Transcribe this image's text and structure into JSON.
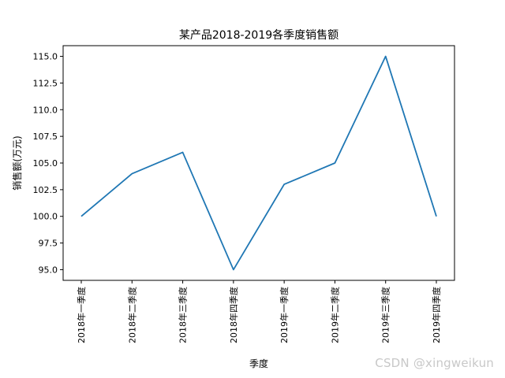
{
  "chart_data": {
    "type": "line",
    "title": "某产品2018-2019各季度销售额",
    "xlabel": "季度",
    "ylabel": "销售额(万元)",
    "categories": [
      "2018年一季度",
      "2018年二季度",
      "2018年三季度",
      "2018年四季度",
      "2019年一季度",
      "2019年二季度",
      "2019年三季度",
      "2019年四季度"
    ],
    "values": [
      100,
      104,
      106,
      95,
      103,
      105,
      115,
      100
    ],
    "ylim": [
      94.0,
      116.0
    ],
    "yticks": [
      95.0,
      97.5,
      100.0,
      102.5,
      105.0,
      107.5,
      110.0,
      112.5,
      115.0
    ],
    "ytick_labels": [
      "95.0",
      "97.5",
      "100.0",
      "102.5",
      "105.0",
      "107.5",
      "110.0",
      "112.5",
      "115.0"
    ],
    "line_color": "#1f77b4",
    "grid": false,
    "legend": "none"
  },
  "watermark": "CSDN @xingweikun"
}
